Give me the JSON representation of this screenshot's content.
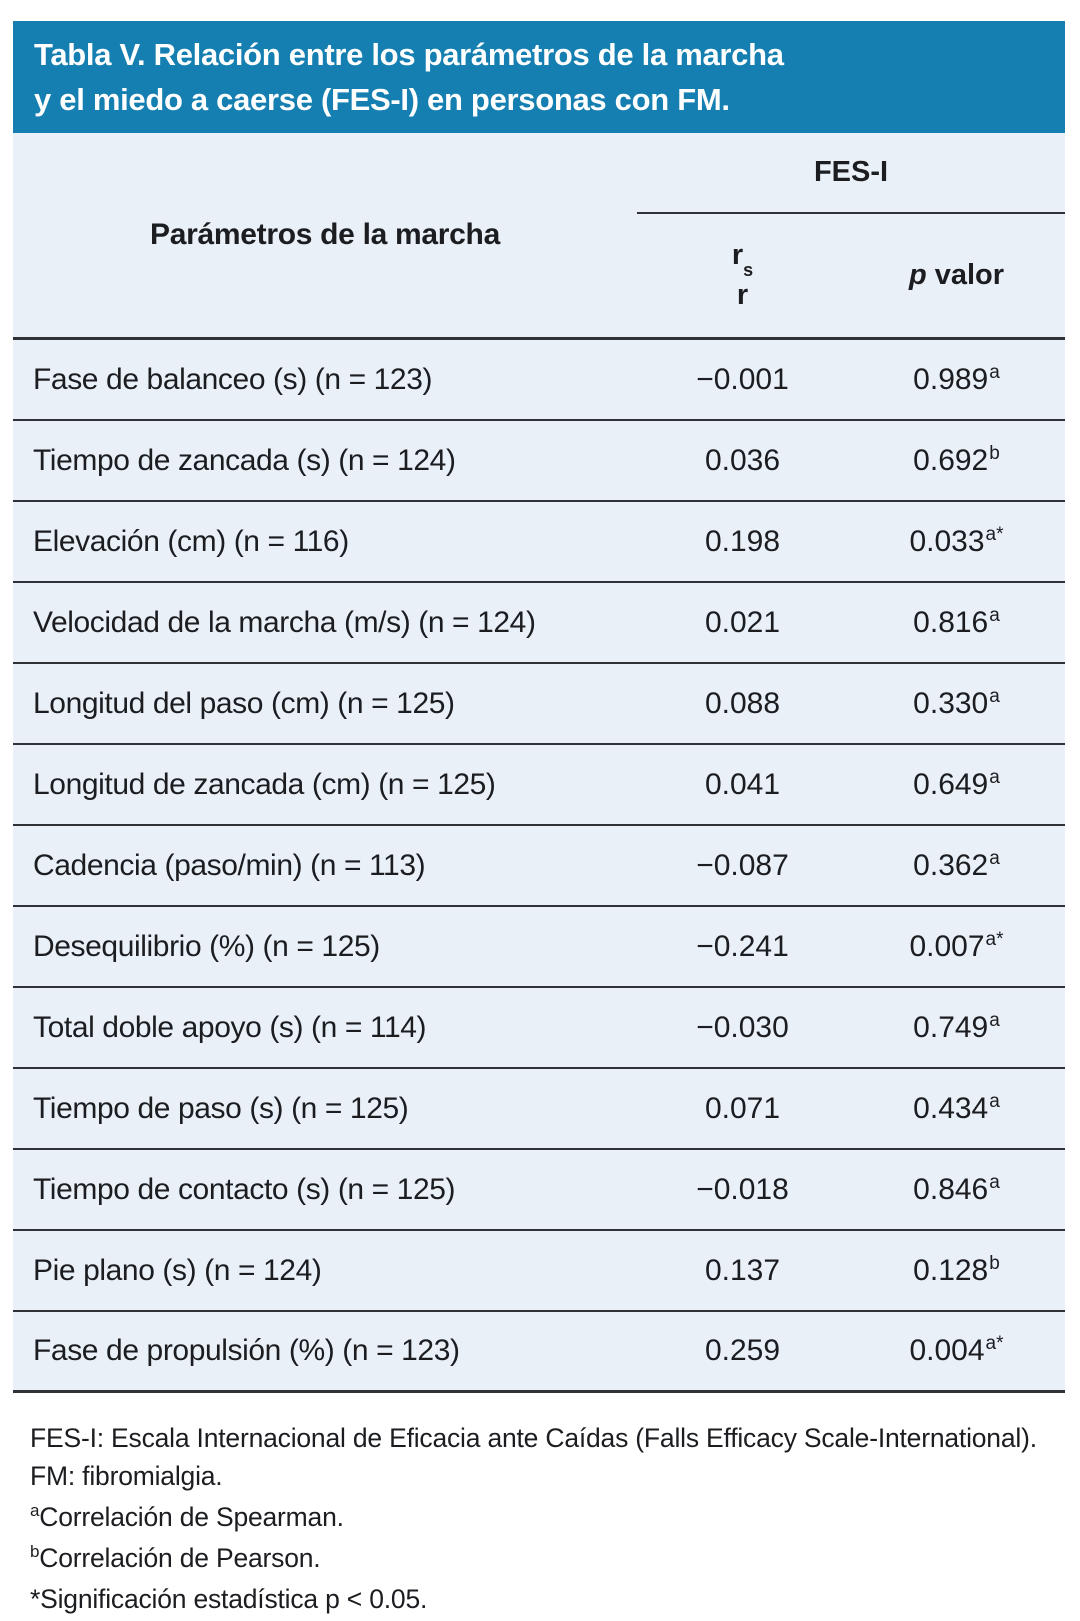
{
  "title": {
    "line1": "Tabla V. Relación entre los parámetros de la marcha",
    "line2": "y el miedo a caerse (FES-I) en personas con FM."
  },
  "header": {
    "param_label": "Parámetros de la marcha",
    "group_label": "FES-I",
    "r_main": "r",
    "r_sub": "s",
    "r_line2": "r",
    "p_italic": "p",
    "p_rest": "valor"
  },
  "table": {
    "rows": [
      {
        "parameter": "Fase de balanceo (s) (n = 123)",
        "r": "−0.001",
        "p": "0.989",
        "p_sup": "a"
      },
      {
        "parameter": "Tiempo de zancada (s) (n = 124)",
        "r": "0.036",
        "p": "0.692",
        "p_sup": "b"
      },
      {
        "parameter": "Elevación (cm) (n = 116)",
        "r": "0.198",
        "p": "0.033",
        "p_sup": "a*"
      },
      {
        "parameter": "Velocidad de la marcha (m/s) (n = 124)",
        "r": "0.021",
        "p": "0.816",
        "p_sup": "a"
      },
      {
        "parameter": "Longitud del paso (cm) (n = 125)",
        "r": "0.088",
        "p": "0.330",
        "p_sup": "a"
      },
      {
        "parameter": "Longitud de zancada (cm) (n = 125)",
        "r": "0.041",
        "p": "0.649",
        "p_sup": "a"
      },
      {
        "parameter": "Cadencia (paso/min) (n = 113)",
        "r": "−0.087",
        "p": "0.362",
        "p_sup": "a"
      },
      {
        "parameter": "Desequilibrio (%) (n = 125)",
        "r": "−0.241",
        "p": "0.007",
        "p_sup": "a*"
      },
      {
        "parameter": "Total doble apoyo (s) (n = 114)",
        "r": "−0.030",
        "p": "0.749",
        "p_sup": "a"
      },
      {
        "parameter": "Tiempo de paso (s) (n = 125)",
        "r": "0.071",
        "p": "0.434",
        "p_sup": "a"
      },
      {
        "parameter": "Tiempo de contacto (s) (n = 125)",
        "r": "−0.018",
        "p": "0.846",
        "p_sup": "a"
      },
      {
        "parameter": "Pie plano (s) (n = 124)",
        "r": "0.137",
        "p": "0.128",
        "p_sup": "b"
      },
      {
        "parameter": "Fase de propulsión (%) (n = 123)",
        "r": "0.259",
        "p": "0.004",
        "p_sup": "a*"
      }
    ]
  },
  "footnotes": [
    {
      "sup": "",
      "text": "FES-I: Escala Internacional de Eficacia ante Caídas (Falls Efficacy Scale-International). FM: fibromialgia."
    },
    {
      "sup": "a",
      "text": "Correlación de Spearman."
    },
    {
      "sup": "b",
      "text": "Correlación de Pearson."
    },
    {
      "sup": "",
      "text": "*Significación estadística p < 0.05."
    }
  ],
  "colors": {
    "accent_blue": "#147FB0",
    "table_background": "#EAF0F8",
    "rule": "#2F3338",
    "text": "#1B1D20",
    "title_text": "#FFFFFF"
  }
}
